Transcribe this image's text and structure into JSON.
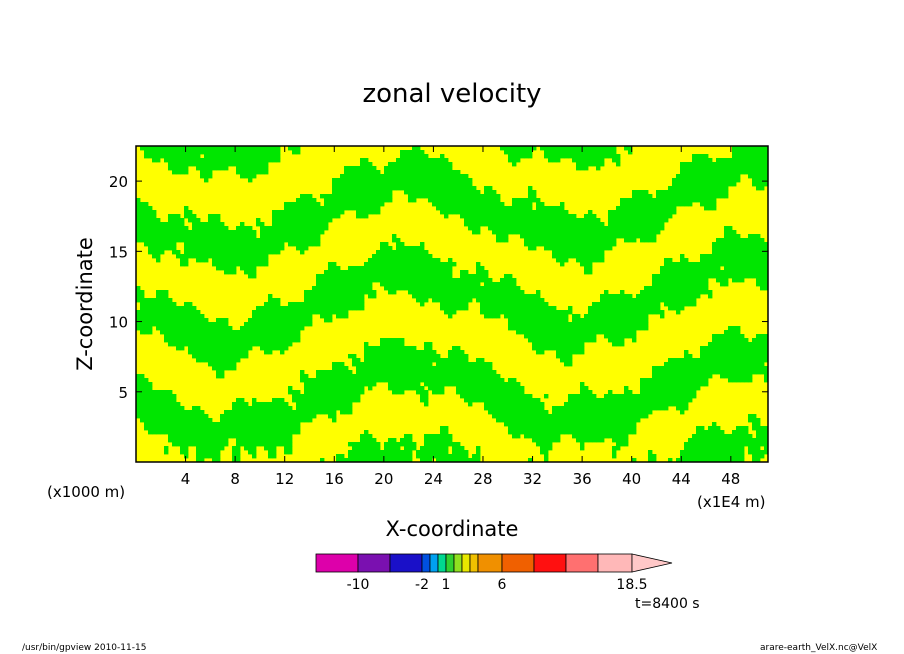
{
  "chart_data": {
    "type": "heatmap",
    "title": "zonal velocity",
    "xlabel": "X-coordinate",
    "ylabel": "Z-coordinate",
    "x_unit": "(x1000 m)",
    "x_multiplier_note": "(x1E4 m)",
    "x_ticks": [
      "4",
      "8",
      "12",
      "16",
      "20",
      "24",
      "28",
      "32",
      "36",
      "40",
      "44",
      "48"
    ],
    "y_ticks": [
      "5",
      "10",
      "15",
      "20"
    ],
    "xlim": [
      0,
      51
    ],
    "ylim": [
      0,
      22.5
    ],
    "colorbar": {
      "labels": [
        "-10",
        "-2",
        "1",
        "6",
        "18.5"
      ],
      "colors": [
        "#dd00aa",
        "#7a10b0",
        "#1a10c8",
        "#0050e0",
        "#00a0f0",
        "#00d890",
        "#30d030",
        "#90e020",
        "#e8e800",
        "#f0c000",
        "#f09000",
        "#f06000",
        "#ff1010",
        "#ff7070",
        "#ffb8b8",
        "#ffc8c8"
      ]
    },
    "fill_colors": {
      "positive": "#ffff00",
      "negative": "#00e600"
    },
    "time_label": "t=8400 s"
  },
  "footer": {
    "left": "/usr/bin/gpview   2010-11-15",
    "right": "arare-earth_VelX.nc@VelX"
  }
}
